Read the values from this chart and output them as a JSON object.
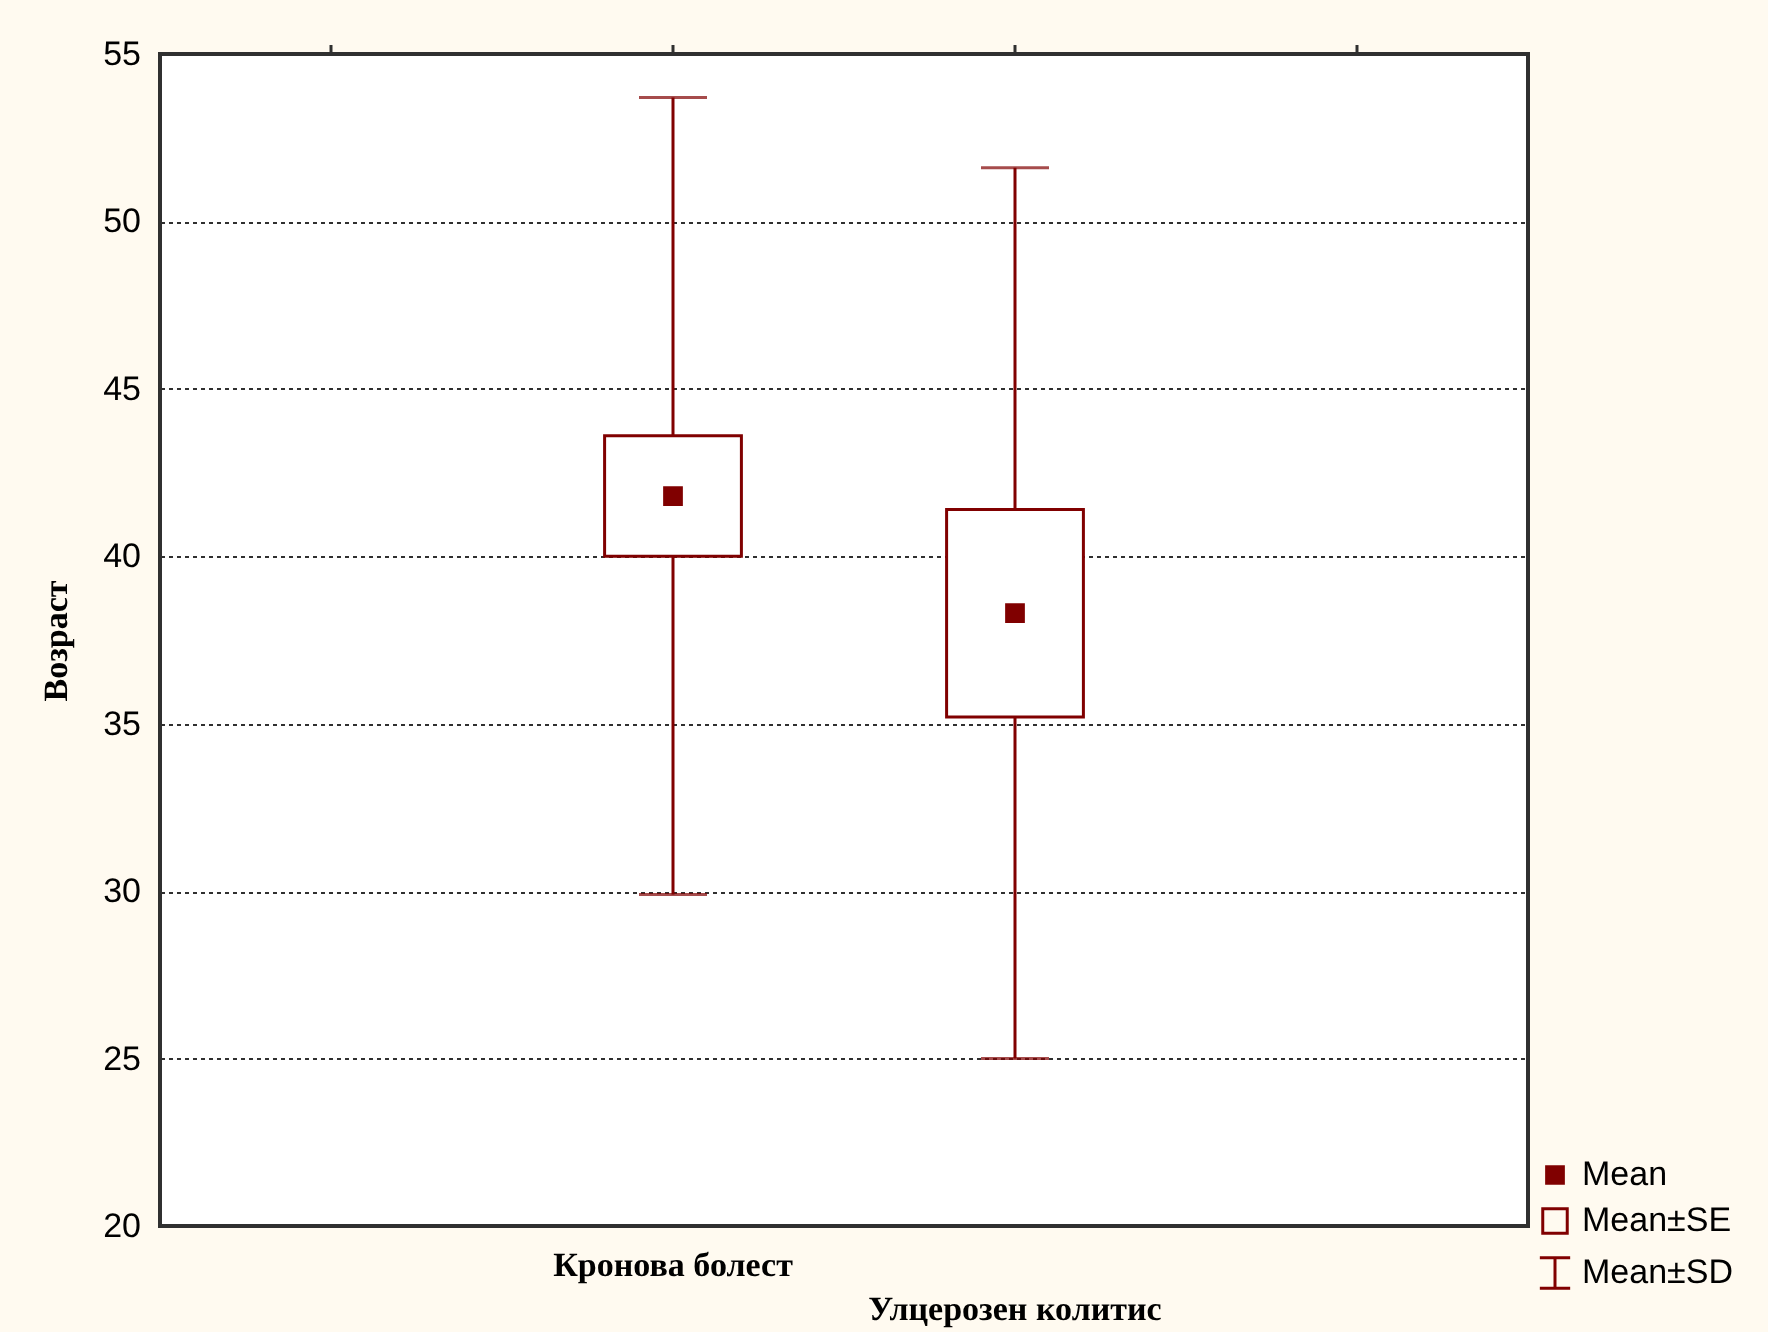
{
  "chart_data": {
    "type": "scatter",
    "marker": "none",
    "categories": [
      null,
      "Кронова болест",
      "Улцерозен колитис",
      null
    ],
    "ylabel": "Возраст",
    "ylim": [
      20,
      55
    ],
    "yticks": [
      20,
      25,
      30,
      35,
      40,
      45,
      50,
      55
    ],
    "grid": "y",
    "legend": "bottom right",
    "series": [
      {
        "name": "Mean",
        "marker": "square",
        "color": "#800000",
        "values": [
          null,
          41.8,
          38.3,
          null
        ],
        "errors": [
          null,
          11.9,
          13.3,
          null
        ]
      },
      {
        "name": "Mean±SE",
        "type": "bar",
        "color": "#800000",
        "base": [
          null,
          40.0,
          35.2,
          null
        ],
        "values": [
          null,
          3.6,
          6.2,
          null
        ]
      },
      {
        "name": "Mean±SD",
        "color": "#800000",
        "values": [
          null,
          null,
          null,
          null
        ]
      }
    ]
  }
}
